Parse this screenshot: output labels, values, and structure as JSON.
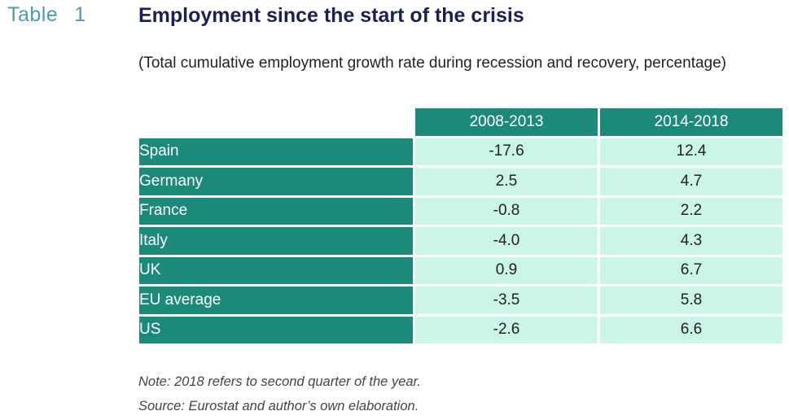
{
  "header": {
    "table_word": "Table",
    "table_number": "1",
    "title": "Employment since the start of the crisis",
    "subtitle": "(Total cumulative employment growth rate during recession and recovery, percentage)"
  },
  "table": {
    "columns": [
      "2008-2013",
      "2014-2018"
    ],
    "rows": [
      {
        "country": "Spain",
        "values": [
          "-17.6",
          "12.4"
        ]
      },
      {
        "country": "Germany",
        "values": [
          "2.5",
          "4.7"
        ]
      },
      {
        "country": "France",
        "values": [
          "-0.8",
          "2.2"
        ]
      },
      {
        "country": "Italy",
        "values": [
          "-4.0",
          "4.3"
        ]
      },
      {
        "country": "UK",
        "values": [
          "0.9",
          "6.7"
        ]
      },
      {
        "country": "EU average",
        "values": [
          "-3.5",
          "5.8"
        ]
      },
      {
        "country": "US",
        "values": [
          "-2.6",
          "6.6"
        ]
      }
    ]
  },
  "notes": {
    "note": "Note: 2018 refers to second quarter of the year.",
    "source": "Source: Eurostat and author’s own elaboration."
  },
  "colors": {
    "header_fill": "#1b8a78",
    "cell_fill": "#cbf5e6",
    "title": "#1b2151",
    "table_label": "#4f98b7"
  }
}
